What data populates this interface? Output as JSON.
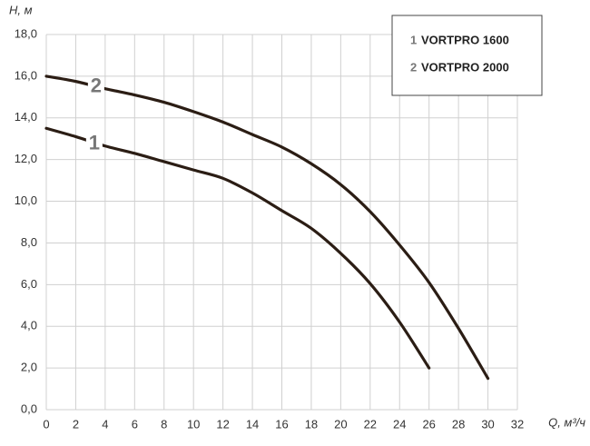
{
  "chart_data": {
    "type": "line",
    "x_label": "Q, м³/ч",
    "y_label": "H, м",
    "x": [
      0,
      2,
      4,
      6,
      8,
      10,
      12,
      14,
      16,
      18,
      20,
      22,
      24,
      26,
      28,
      30
    ],
    "series": [
      {
        "label": "1",
        "name": "VORTPRO 1600",
        "color": "#2b1d14",
        "values": [
          13.5,
          13.1,
          12.65,
          12.3,
          11.9,
          11.5,
          11.1,
          10.4,
          9.55,
          8.7,
          7.5,
          6.05,
          4.2,
          2.0,
          null,
          null
        ]
      },
      {
        "label": "2",
        "name": "VORTPRO 2000",
        "color": "#2b1d14",
        "values": [
          16.0,
          15.75,
          15.4,
          15.1,
          14.75,
          14.3,
          13.8,
          13.2,
          12.6,
          11.8,
          10.8,
          9.5,
          7.9,
          6.1,
          3.9,
          1.5
        ]
      }
    ],
    "xlim": [
      0,
      32
    ],
    "xticks": [
      0,
      2,
      4,
      6,
      8,
      10,
      12,
      14,
      16,
      18,
      20,
      22,
      24,
      26,
      28,
      30,
      32
    ],
    "ylim": [
      0,
      18
    ],
    "yticks": [
      {
        "value": 0,
        "label": "0,0"
      },
      {
        "value": 2,
        "label": "2,0"
      },
      {
        "value": 4,
        "label": "4,0"
      },
      {
        "value": 6,
        "label": "6,0"
      },
      {
        "value": 8,
        "label": "8,0"
      },
      {
        "value": 10,
        "label": "10,0"
      },
      {
        "value": 12,
        "label": "12,0"
      },
      {
        "value": 14,
        "label": "14,0"
      },
      {
        "value": 16,
        "label": "16,0"
      },
      {
        "value": 18,
        "label": "18,0"
      }
    ],
    "grid": true,
    "legend_position": "upper right"
  }
}
